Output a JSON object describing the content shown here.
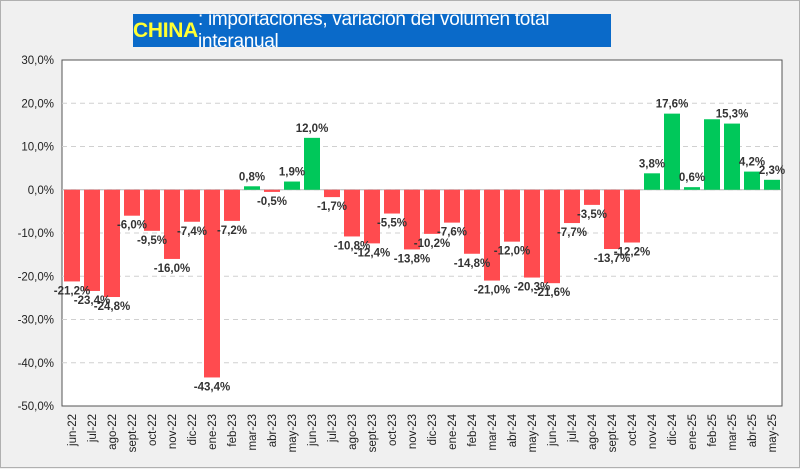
{
  "chart_data": {
    "type": "bar",
    "title_country": "CHINA",
    "title_rest": ": importaciones, variación del volumen total interanual",
    "title": "CHINA: importaciones, variación del volumen total interanual",
    "xlabel": "",
    "ylabel": "",
    "ylim": [
      -50,
      30
    ],
    "yticks": [
      30,
      20,
      10,
      0,
      -10,
      -20,
      -30,
      -40,
      -50
    ],
    "ytick_labels": [
      "30,0%",
      "20,0%",
      "10,0%",
      "0,0%",
      "-10,0%",
      "-20,0%",
      "-30,0%",
      "-40,0%",
      "-50,0%"
    ],
    "grid": true,
    "legend": "none",
    "colors": {
      "positive": "#00c85a",
      "negative": "#ff4b4f"
    },
    "categories": [
      "jun-22",
      "jul-22",
      "ago-22",
      "sept-22",
      "oct-22",
      "nov-22",
      "dic-22",
      "ene-23",
      "feb-23",
      "mar-23",
      "abr-23",
      "may-23",
      "jun-23",
      "jul-23",
      "ago-23",
      "sept-23",
      "oct-23",
      "nov-23",
      "dic-23",
      "ene-24",
      "feb-24",
      "mar-24",
      "abr-24",
      "may-24",
      "jun-24",
      "jul-24",
      "ago-24",
      "sept-24",
      "oct-24",
      "nov-24",
      "dic-24",
      "ene-25",
      "feb-25",
      "mar-25",
      "abr-25",
      "may-25"
    ],
    "values": [
      -21.2,
      -23.4,
      -24.8,
      -6.0,
      -9.5,
      -16.0,
      -7.4,
      -43.4,
      -7.2,
      0.8,
      -0.5,
      1.9,
      12.0,
      -1.7,
      -10.8,
      -12.4,
      -5.5,
      -13.8,
      -10.2,
      -7.6,
      -14.8,
      -21.0,
      -12.0,
      -20.3,
      -21.6,
      -7.7,
      -3.5,
      -13.7,
      -12.2,
      3.8,
      17.6,
      0.6,
      16.3,
      15.3,
      4.2,
      2.3
    ],
    "data_labels": [
      "-21,2%",
      "-23,4%",
      "-24,8%",
      "-6,0%",
      "-9,5%",
      "-16,0%",
      "-7,4%",
      "-43,4%",
      "-7,2%",
      "0,8%",
      "-0,5%",
      "1,9%",
      "12,0%",
      "-1,7%",
      "-10,8%",
      "-12,4%",
      "-5,5%",
      "-13,8%",
      "-10,2%",
      "-7,6%",
      "-14,8%",
      "-21,0%",
      "-12,0%",
      "-20,3%",
      "-21,6%",
      "-7,7%",
      "-3,5%",
      "-13,7%",
      "-12,2%",
      "3,8%",
      "17,6%",
      "0,6%",
      "",
      "15,3%",
      "4,2%",
      "2,3%"
    ]
  }
}
